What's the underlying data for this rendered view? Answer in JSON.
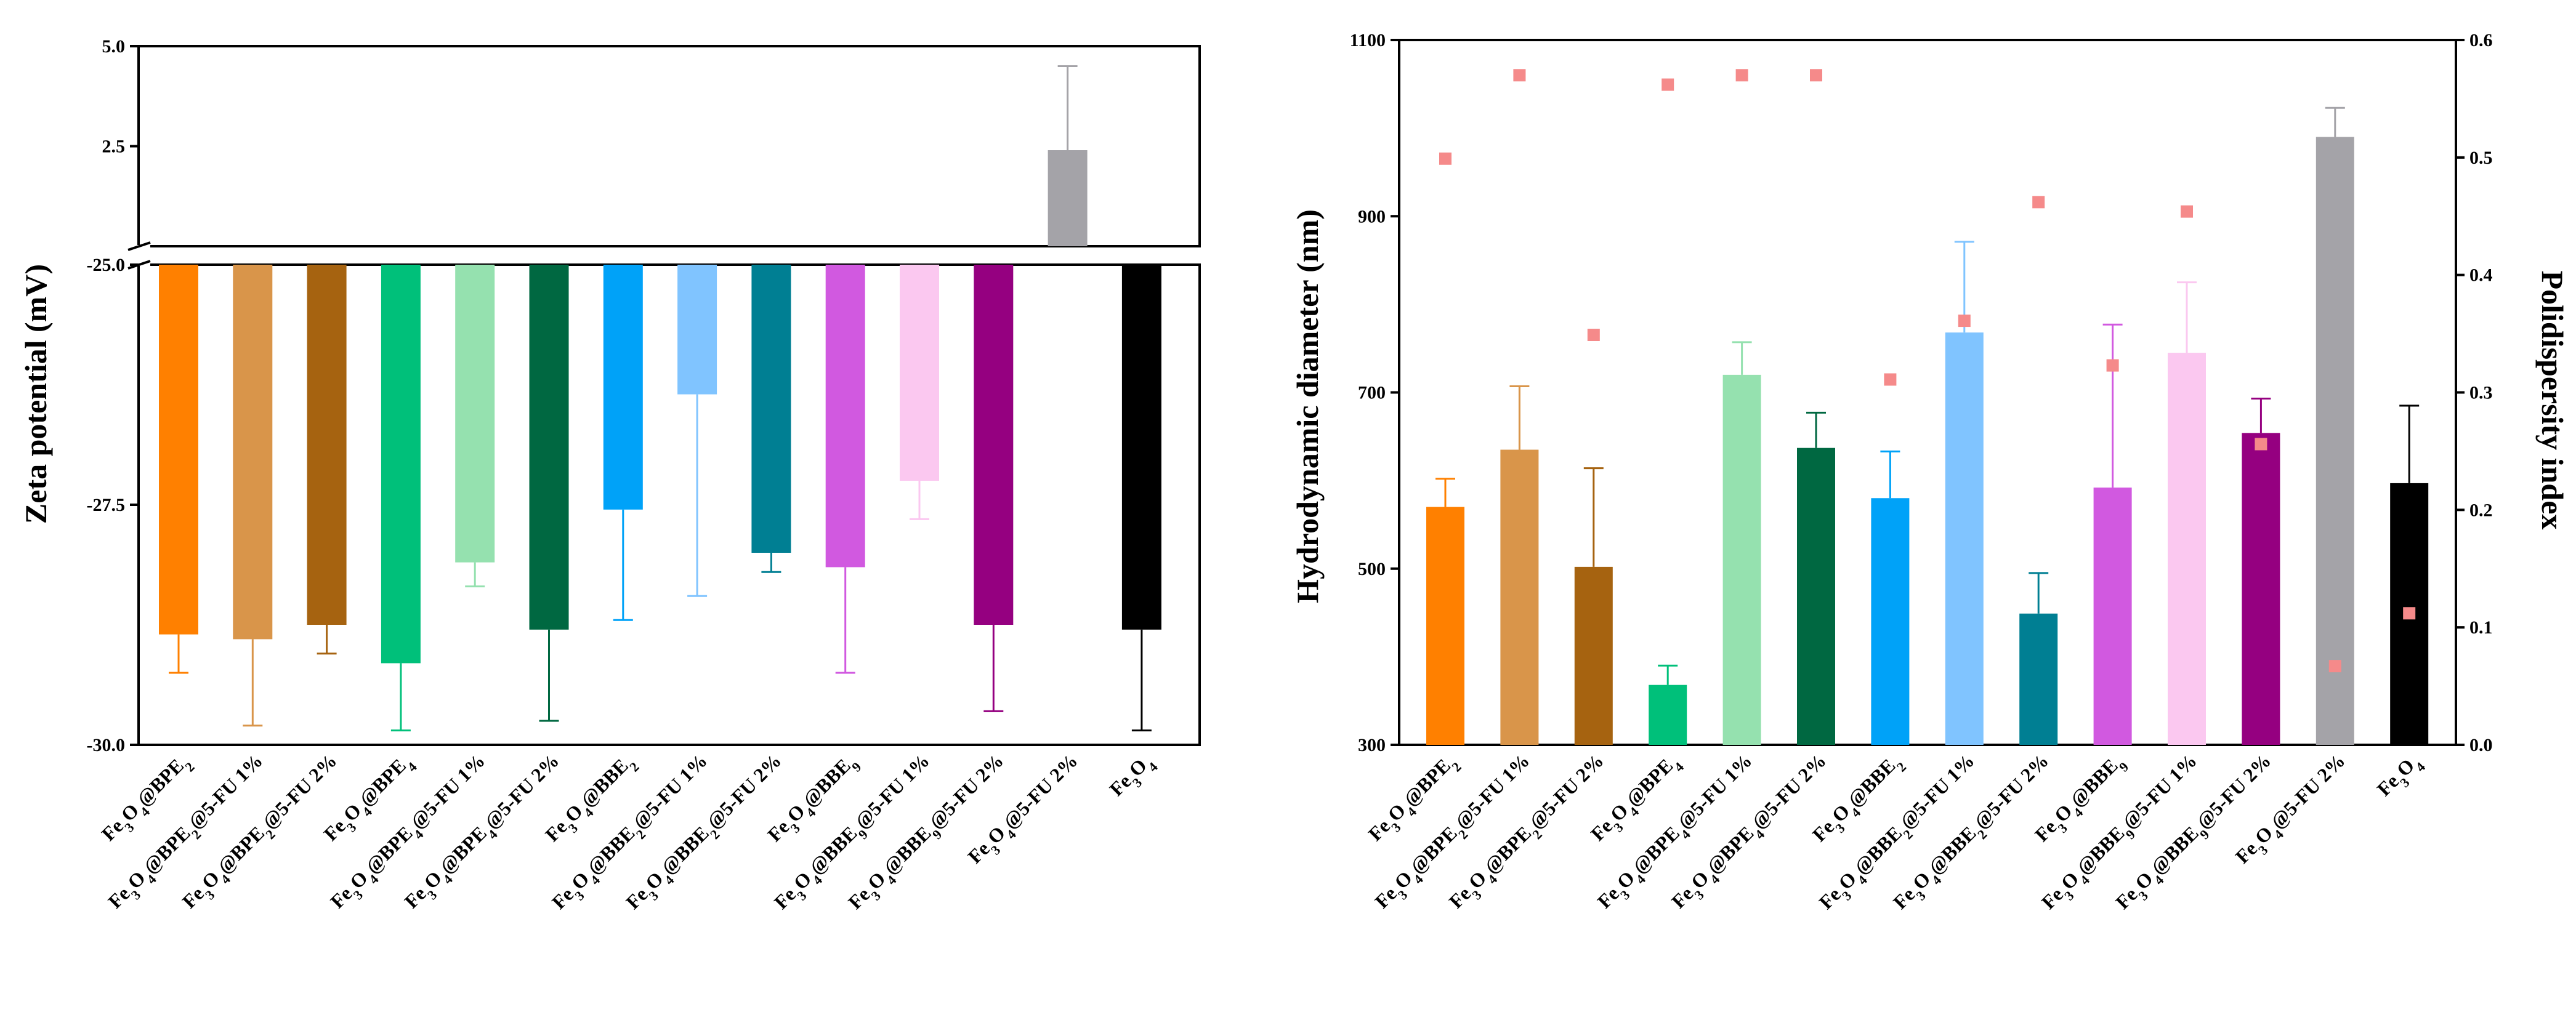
{
  "chart_data": [
    {
      "type": "bar",
      "title": "",
      "ylabel": "Zeta potential (mV)",
      "xlabel": "",
      "y_axis_break": true,
      "upper_ylim": [
        0,
        5.0
      ],
      "lower_ylim": [
        -30.0,
        -25.0
      ],
      "upper_ticks": [
        {
          "value": 2.5,
          "label": "2.5"
        },
        {
          "value": 5.0,
          "label": "5.0"
        }
      ],
      "lower_ticks": [
        {
          "value": -25.0,
          "label": "-25.0"
        },
        {
          "value": -27.5,
          "label": "-27.5"
        },
        {
          "value": -30.0,
          "label": "-30.0"
        }
      ],
      "categories": [
        "Fe3O4@BPE2",
        "Fe3O4@BPE2@5-FU 1%",
        "Fe3O4@BPE2@5-FU 2%",
        "Fe3O4@BPE4",
        "Fe3O4@BPE4@5-FU 1%",
        "Fe3O4@BPE4@5-FU 2%",
        "Fe3O4@BBE2",
        "Fe3O4@BBE2@5-FU 1%",
        "Fe3O4@BBE2@5-FU 2%",
        "Fe3O4@BBE9",
        "Fe3O4@BBE9@5-FU 1%",
        "Fe3O4@BBE9@5-FU 2%",
        "Fe3O4@5-FU 2%",
        "Fe3O4"
      ],
      "values": [
        -28.85,
        -28.9,
        -28.75,
        -29.15,
        -28.1,
        -28.8,
        -27.55,
        -26.35,
        -28.0,
        -28.15,
        -27.25,
        -28.75,
        2.4,
        -28.8
      ],
      "errors": [
        0.4,
        0.9,
        0.3,
        0.7,
        0.25,
        0.95,
        1.15,
        2.1,
        0.2,
        1.1,
        0.4,
        0.9,
        2.1,
        1.05
      ],
      "colors": [
        "#FF8000",
        "#D9954A",
        "#A66310",
        "#00C07A",
        "#95E1AF",
        "#006841",
        "#00A2F8",
        "#80C4FF",
        "#007F93",
        "#D159E0",
        "#FBC8F0",
        "#950080",
        "#A4A3A8",
        "#000000"
      ]
    },
    {
      "type": "bar",
      "title": "",
      "ylabel": "Hydrodynamic diameter (nm)",
      "y2label": "Polidispersity index",
      "xlabel": "",
      "ylim": [
        300,
        1100
      ],
      "y2lim": [
        0.0,
        0.6
      ],
      "yticks": [
        "300",
        "500",
        "700",
        "900",
        "1100"
      ],
      "y2ticks": [
        "0.0",
        "0.1",
        "0.2",
        "0.3",
        "0.4",
        "0.5",
        "0.6"
      ],
      "categories": [
        "Fe3O4@BPE2",
        "Fe3O4@BPE2@5-FU 1%",
        "Fe3O4@BPE2@5-FU 2%",
        "Fe3O4@BPE4",
        "Fe3O4@BPE4@5-FU 1%",
        "Fe3O4@BPE4@5-FU 2%",
        "Fe3O4@BBE2",
        "Fe3O4@BBE2@5-FU 1%",
        "Fe3O4@BBE2@5-FU 2%",
        "Fe3O4@BBE9",
        "Fe3O4@BBE9@5-FU 1%",
        "Fe3O4@BBE9@5-FU 2%",
        "Fe3O4@5-FU 2%",
        "Fe3O4"
      ],
      "values": [
        570,
        635,
        502,
        368,
        720,
        637,
        580,
        768,
        449,
        592,
        745,
        654,
        990,
        597
      ],
      "errors": [
        32,
        72,
        112,
        22,
        37,
        40,
        53,
        103,
        46,
        185,
        80,
        39,
        33,
        88
      ],
      "pdi_values": [
        0.499,
        0.57,
        0.349,
        0.562,
        0.57,
        0.57,
        0.311,
        0.361,
        0.462,
        0.323,
        0.454,
        0.256,
        0.067,
        0.112
      ],
      "pdi_color": "#F58A8A",
      "colors": [
        "#FF8000",
        "#D9954A",
        "#A66310",
        "#00C07A",
        "#95E1AF",
        "#006841",
        "#00A2F8",
        "#80C4FF",
        "#007F93",
        "#D159E0",
        "#FBC8F0",
        "#950080",
        "#A4A3A8",
        "#000000"
      ]
    }
  ]
}
